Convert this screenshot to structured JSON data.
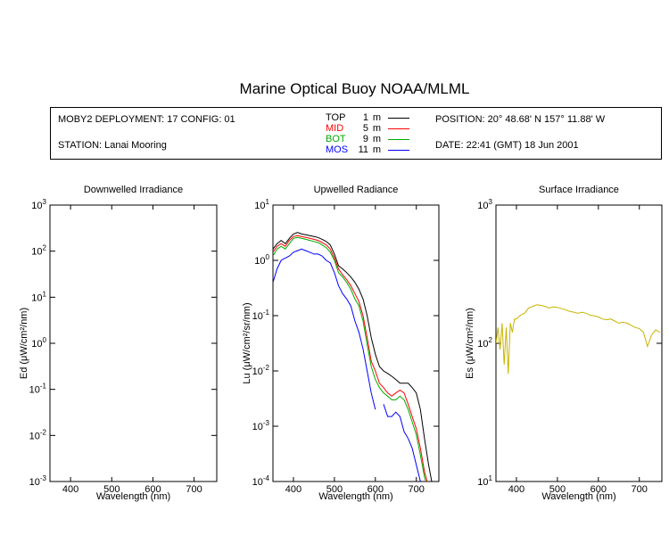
{
  "header": {
    "title": "Marine Optical Buoy NOAA/MLML"
  },
  "info": {
    "deployment": "MOBY2 DEPLOYMENT: 17 CONFIG: 01",
    "station": "STATION: Lanai Mooring",
    "position": "POSITION: 20° 48.68' N   157° 11.88' W",
    "date": "DATE: 22:41 (GMT) 18 Jun 2001",
    "legend": [
      {
        "name": "TOP",
        "depth": "1",
        "unit": "m",
        "color": "#000000"
      },
      {
        "name": "MID",
        "depth": "5",
        "unit": "m",
        "color": "#ff0000"
      },
      {
        "name": "BOT",
        "depth": "9",
        "unit": "m",
        "color": "#00aa00"
      },
      {
        "name": "MOS",
        "depth": "11",
        "unit": "m",
        "color": "#0000ff"
      }
    ]
  },
  "chart_data": [
    {
      "type": "line",
      "title": "Downwelled Irradiance",
      "xlabel": "Wavelength (nm)",
      "ylabel_main": "Ed",
      "ylabel_unit": "(μW/cm²/nm)",
      "xlim": [
        350,
        755
      ],
      "xticks": [
        400,
        500,
        600,
        700
      ],
      "yscale": "log",
      "ylim_exp": [
        -3,
        3
      ],
      "series": []
    },
    {
      "type": "line",
      "title": "Upwelled Radiance",
      "xlabel": "Wavelength (nm)",
      "ylabel_main": "Lu",
      "ylabel_unit": "(μW/cm²/sr/nm)",
      "xlim": [
        350,
        755
      ],
      "xticks": [
        400,
        500,
        600,
        700
      ],
      "yscale": "log",
      "ylim_exp": [
        -4,
        1
      ],
      "series": [
        {
          "name": "TOP",
          "color": "#000000",
          "x": [
            350,
            360,
            370,
            380,
            390,
            400,
            410,
            420,
            430,
            440,
            450,
            460,
            470,
            480,
            490,
            500,
            510,
            520,
            530,
            540,
            550,
            560,
            570,
            580,
            590,
            600,
            610,
            620,
            630,
            640,
            650,
            660,
            670,
            680,
            690,
            700,
            710,
            720,
            730,
            740
          ],
          "y": [
            1.6,
            2.0,
            2.3,
            2.0,
            2.5,
            3.0,
            3.2,
            3.0,
            2.9,
            2.8,
            2.7,
            2.6,
            2.4,
            2.2,
            1.9,
            1.3,
            0.8,
            0.7,
            0.6,
            0.5,
            0.4,
            0.3,
            0.2,
            0.1,
            0.04,
            0.02,
            0.012,
            0.01,
            0.009,
            0.008,
            0.007,
            0.006,
            0.006,
            0.006,
            0.005,
            0.004,
            0.002,
            0.0006,
            0.0002,
            8e-05
          ]
        },
        {
          "name": "MID",
          "color": "#ff0000",
          "x": [
            350,
            360,
            370,
            380,
            390,
            400,
            410,
            420,
            430,
            440,
            450,
            460,
            470,
            480,
            490,
            500,
            510,
            520,
            530,
            540,
            550,
            560,
            570,
            580,
            590,
            600,
            610,
            620,
            630,
            640,
            650,
            660,
            670,
            680,
            690,
            700,
            710,
            720,
            730,
            740
          ],
          "y": [
            1.4,
            1.8,
            2.0,
            1.8,
            2.3,
            2.7,
            2.8,
            2.7,
            2.6,
            2.5,
            2.4,
            2.3,
            2.1,
            1.9,
            1.6,
            1.1,
            0.7,
            0.55,
            0.45,
            0.35,
            0.25,
            0.18,
            0.1,
            0.04,
            0.015,
            0.01,
            0.006,
            0.005,
            0.004,
            0.0035,
            0.004,
            0.0045,
            0.004,
            0.0025,
            0.0015,
            0.0009,
            0.0004,
            0.00015,
            8e-05,
            8e-05
          ]
        },
        {
          "name": "BOT",
          "color": "#00aa00",
          "x": [
            350,
            360,
            370,
            380,
            390,
            400,
            410,
            420,
            430,
            440,
            450,
            460,
            470,
            480,
            490,
            500,
            510,
            520,
            530,
            540,
            550,
            560,
            570,
            580,
            590,
            600,
            610,
            620,
            630,
            640,
            650,
            660,
            670,
            680,
            690,
            700,
            710,
            720,
            730,
            740
          ],
          "y": [
            1.2,
            1.6,
            1.8,
            1.6,
            2.0,
            2.5,
            2.6,
            2.5,
            2.4,
            2.3,
            2.2,
            2.1,
            1.9,
            1.7,
            1.4,
            1.0,
            0.6,
            0.5,
            0.4,
            0.3,
            0.2,
            0.15,
            0.08,
            0.03,
            0.012,
            0.007,
            0.005,
            0.004,
            0.0035,
            0.003,
            0.003,
            0.0035,
            0.003,
            0.002,
            0.0012,
            0.0007,
            0.0003,
            0.00012,
            7e-05,
            7e-05
          ]
        },
        {
          "name": "MOS",
          "color": "#0000ff",
          "x": [
            350,
            360,
            370,
            380,
            390,
            400,
            410,
            420,
            430,
            440,
            450,
            460,
            470,
            480,
            490,
            500,
            510,
            520,
            530,
            540,
            550,
            560,
            570,
            580,
            590,
            600,
            610,
            620,
            630,
            640,
            650,
            660,
            670,
            680,
            690,
            700,
            710,
            720,
            730,
            740
          ],
          "y": [
            0.4,
            0.7,
            1.0,
            1.1,
            1.2,
            1.4,
            1.5,
            1.6,
            1.5,
            1.4,
            1.3,
            1.3,
            1.2,
            1.0,
            0.9,
            0.6,
            0.35,
            0.25,
            0.2,
            0.15,
            0.08,
            0.05,
            0.025,
            0.01,
            0.004,
            0.002,
            null,
            0.0025,
            0.0015,
            0.0015,
            0.0018,
            0.0015,
            0.0008,
            0.0006,
            0.0004,
            0.0002,
            0.0001,
            6e-05,
            5e-05,
            5e-05
          ]
        }
      ]
    },
    {
      "type": "line",
      "title": "Surface Irradiance",
      "xlabel": "Wavelength (nm)",
      "ylabel_main": "Es",
      "ylabel_unit": "(μW/cm²/nm)",
      "xlim": [
        350,
        755
      ],
      "xticks": [
        400,
        500,
        600,
        700
      ],
      "yscale": "log",
      "ylim_exp": [
        1,
        3
      ],
      "series": [
        {
          "name": "Es",
          "color": "#c8b400",
          "x": [
            350,
            355,
            360,
            365,
            370,
            375,
            380,
            385,
            390,
            395,
            400,
            410,
            420,
            430,
            440,
            450,
            460,
            470,
            480,
            490,
            500,
            510,
            520,
            530,
            540,
            550,
            560,
            570,
            580,
            590,
            600,
            610,
            620,
            630,
            640,
            650,
            660,
            670,
            680,
            690,
            700,
            710,
            720,
            730,
            740,
            750
          ],
          "y": [
            100,
            130,
            90,
            140,
            70,
            130,
            60,
            140,
            120,
            150,
            150,
            160,
            165,
            180,
            185,
            190,
            188,
            185,
            180,
            183,
            182,
            178,
            175,
            170,
            168,
            165,
            168,
            165,
            160,
            158,
            155,
            150,
            148,
            150,
            145,
            140,
            142,
            140,
            135,
            130,
            128,
            120,
            95,
            115,
            125,
            120
          ]
        }
      ]
    }
  ]
}
